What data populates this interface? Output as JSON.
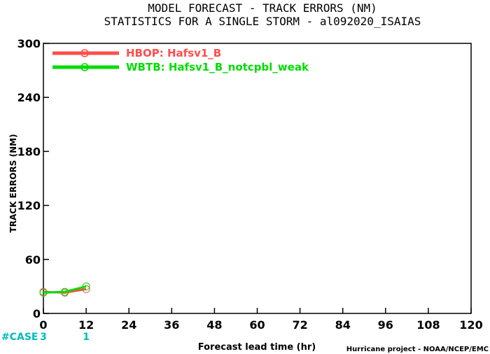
{
  "chart_data": {
    "type": "line",
    "title_line1": "MODEL FORECAST - TRACK ERRORS (NM)",
    "title_line2": "STATISTICS FOR A SINGLE STORM - al092020_ISAIAS",
    "xlabel": "Forecast lead time (hr)",
    "ylabel": "TRACK ERRORS (NM)",
    "credit": "Hurricane project - NOAA/NCEP/EMC",
    "xlim": [
      0,
      120
    ],
    "ylim": [
      0,
      300
    ],
    "xticks": [
      0,
      12,
      24,
      36,
      48,
      60,
      72,
      84,
      96,
      108,
      120
    ],
    "yticks": [
      0,
      60,
      120,
      180,
      240,
      300
    ],
    "series": [
      {
        "name": "HBOP: Hafsv1_B",
        "color": "#ff4d4d",
        "x": [
          0,
          6,
          12
        ],
        "y": [
          24,
          23,
          27
        ]
      },
      {
        "name": "WBTB: Hafsv1_B_notcpbl_weak",
        "color": "#00dd00",
        "x": [
          0,
          6,
          12
        ],
        "y": [
          23,
          24,
          30
        ]
      }
    ],
    "case_label": "#CASE",
    "case_color": "#00bbbb",
    "cases": [
      {
        "x": 0,
        "count": "3"
      },
      {
        "x": 12,
        "count": "1"
      }
    ],
    "legend_position": "top-left",
    "grid": false
  }
}
